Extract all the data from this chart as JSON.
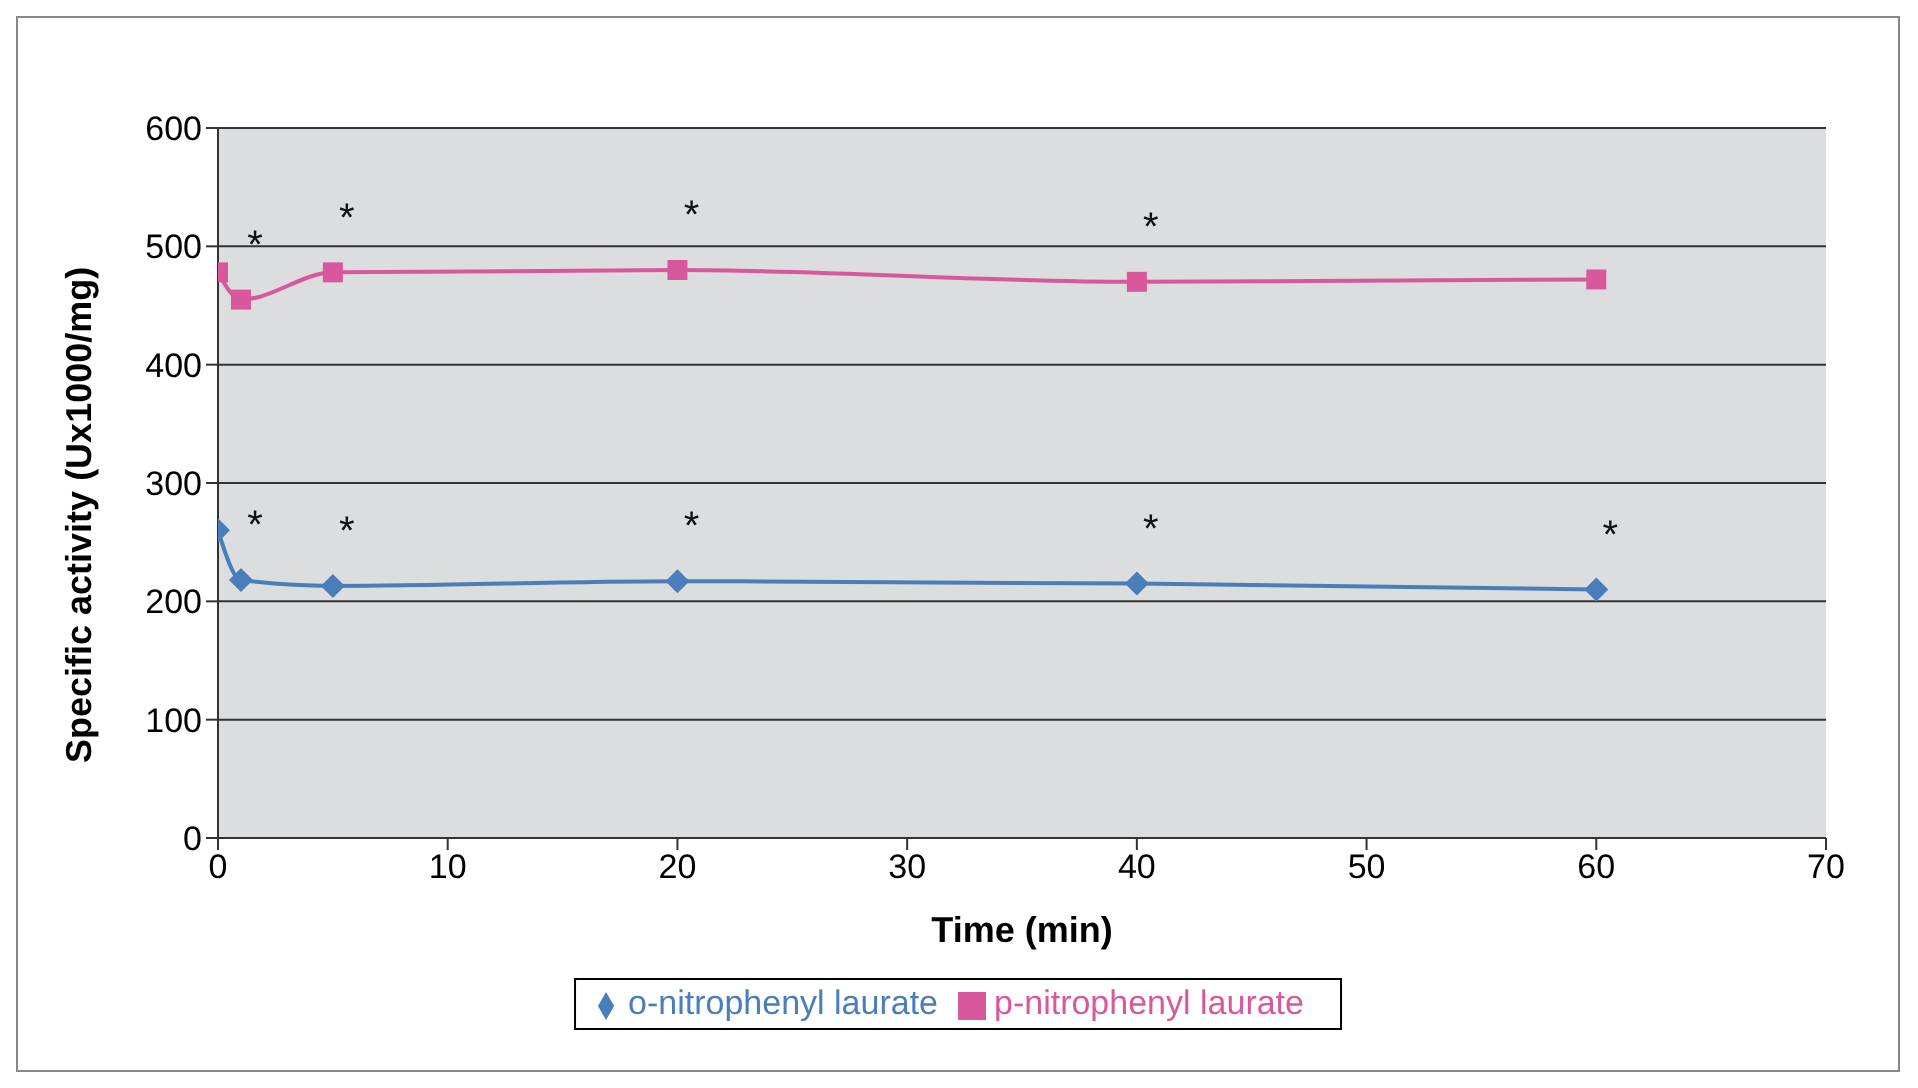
{
  "chart_data": {
    "type": "line",
    "xlabel": "Time (min)",
    "ylabel": "Specific activity (Ux1000/mg)",
    "x": [
      0,
      1,
      5,
      20,
      40,
      60
    ],
    "series": [
      {
        "name": "o-nitrophenyl laurate",
        "color": "#4a7ebb",
        "marker": "diamond",
        "values": [
          260,
          218,
          213,
          217,
          215,
          210
        ]
      },
      {
        "name": "p-nitrophenyl laurate",
        "color": "#d9589c",
        "marker": "square",
        "values": [
          478,
          455,
          478,
          480,
          470,
          472
        ]
      }
    ],
    "xlim": [
      0,
      70
    ],
    "xticks": [
      0,
      10,
      20,
      30,
      40,
      50,
      60,
      70
    ],
    "ylim": [
      0,
      600
    ],
    "yticks": [
      0,
      100,
      200,
      300,
      400,
      500,
      600
    ],
    "grid": "y",
    "legend": "bottom",
    "annotations": [
      {
        "text": "*",
        "x": 1,
        "y": 455
      },
      {
        "text": "*",
        "x": 5,
        "y": 478
      },
      {
        "text": "*",
        "x": 20,
        "y": 480
      },
      {
        "text": "*",
        "x": 40,
        "y": 470
      },
      {
        "text": "*",
        "x": 1,
        "y": 218
      },
      {
        "text": "*",
        "x": 5,
        "y": 213
      },
      {
        "text": "*",
        "x": 20,
        "y": 217
      },
      {
        "text": "*",
        "x": 40,
        "y": 215
      },
      {
        "text": "*",
        "x": 60,
        "y": 210
      }
    ]
  }
}
